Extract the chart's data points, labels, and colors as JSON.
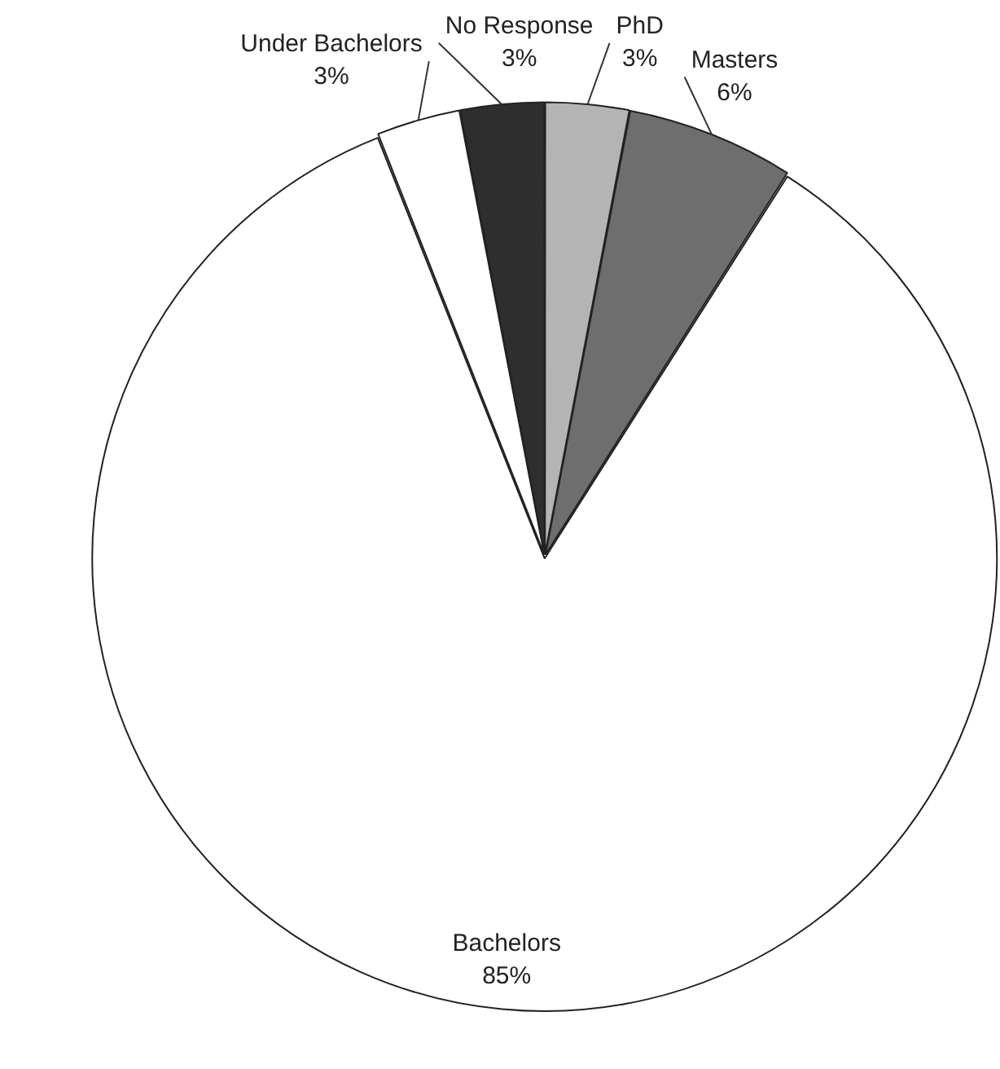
{
  "chart_data": {
    "type": "pie",
    "categories": [
      "PhD",
      "Masters",
      "Bachelors",
      "Under Bachelors",
      "No Response"
    ],
    "values": [
      3,
      6,
      85,
      3,
      3
    ],
    "colors": [
      "#b4b4b4",
      "#6e6e6e",
      "#ffffff",
      "#ffffff",
      "#2e2e2e"
    ],
    "value_labels": [
      "3%",
      "6%",
      "85%",
      "3%",
      "3%"
    ],
    "legend": false
  }
}
